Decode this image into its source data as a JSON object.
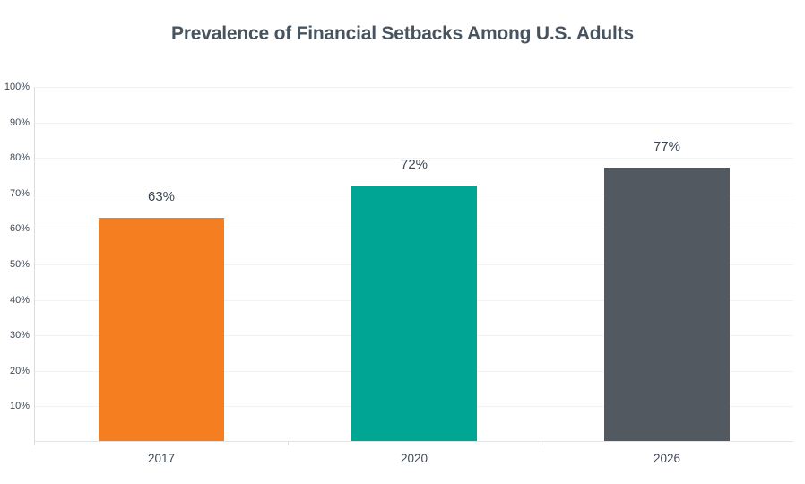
{
  "title": "Prevalence of Financial Setbacks Among U.S. Adults",
  "chart_data": {
    "type": "bar",
    "title": "Prevalence of Financial Setbacks Among U.S. Adults",
    "categories": [
      "2017",
      "2020",
      "2026"
    ],
    "values": [
      63,
      72,
      77
    ],
    "value_labels": [
      "63%",
      "72%",
      "77%"
    ],
    "bar_colors": [
      "#F57E20",
      "#00A693",
      "#525960"
    ],
    "xlabel": "",
    "ylabel": "",
    "ylim": [
      0,
      100
    ],
    "ytick_step": 10,
    "ytick_labels": [
      "10%",
      "20%",
      "30%",
      "40%",
      "50%",
      "60%",
      "70%",
      "80%",
      "90%",
      "100%"
    ],
    "grid": "horizontal",
    "legend": "none",
    "background_color": "#FFFFFF"
  },
  "style_colors": {
    "title_text": "#47535E",
    "tick_text": "#3E4A57",
    "value_label_text": "#3C4855",
    "gridline": "#F3F3F4",
    "axis_line": "#DBDCDE",
    "baseline": "#E3E4E6"
  }
}
